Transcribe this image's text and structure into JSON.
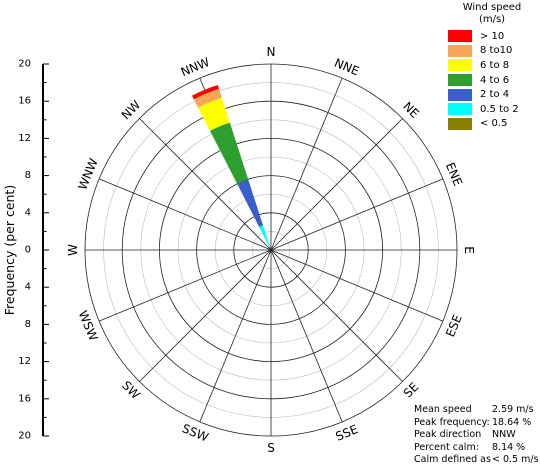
{
  "chart_data": {
    "type": "wind-rose",
    "direction_labels": [
      "N",
      "NNE",
      "NE",
      "ENE",
      "E",
      "ESE",
      "SE",
      "SSE",
      "S",
      "SSW",
      "SW",
      "WSW",
      "W",
      "WNW",
      "NW",
      "NNW"
    ],
    "ylabel": "Frequency (per cent)",
    "y_ticks": [
      "20",
      "16",
      "12",
      "8",
      "4",
      "0",
      "4",
      "8",
      "12",
      "16",
      "20"
    ],
    "y_max": 20,
    "legend": {
      "title_line1": "Wind speed",
      "title_line2": "(m/s)",
      "bins": [
        {
          "label": "> 10",
          "color": "#ff0000"
        },
        {
          "label": "8 to10",
          "color": "#f5a65b"
        },
        {
          "label": "6 to 8",
          "color": "#ffff00"
        },
        {
          "label": "4 to 6",
          "color": "#2e9e2e"
        },
        {
          "label": "2 to 4",
          "color": "#3a5fcd"
        },
        {
          "label": "0.5 to 2",
          "color": "#00ffff"
        },
        {
          "label": "< 0.5",
          "color": "#8b7d00"
        }
      ]
    },
    "series": [
      {
        "direction": "NNW",
        "cumulative_frequency": [
          0,
          2.8,
          8.0,
          14.4,
          17.2,
          18.2,
          18.64
        ],
        "bins": [
          "< 0.5",
          "0.5 to 2",
          "2 to 4",
          "4 to 6",
          "6 to 8",
          "8 to10",
          "> 10"
        ]
      }
    ],
    "stats": [
      {
        "label": "Mean speed",
        "value": "2.59 m/s"
      },
      {
        "label": "Peak frequency:",
        "value": "18.64 %"
      },
      {
        "label": "Peak direction",
        "value": "NNW"
      },
      {
        "label": "Percent calm:",
        "value": "8.14 %"
      },
      {
        "label": "Calm defined as",
        "value": "< 0.5 m/s"
      }
    ]
  }
}
